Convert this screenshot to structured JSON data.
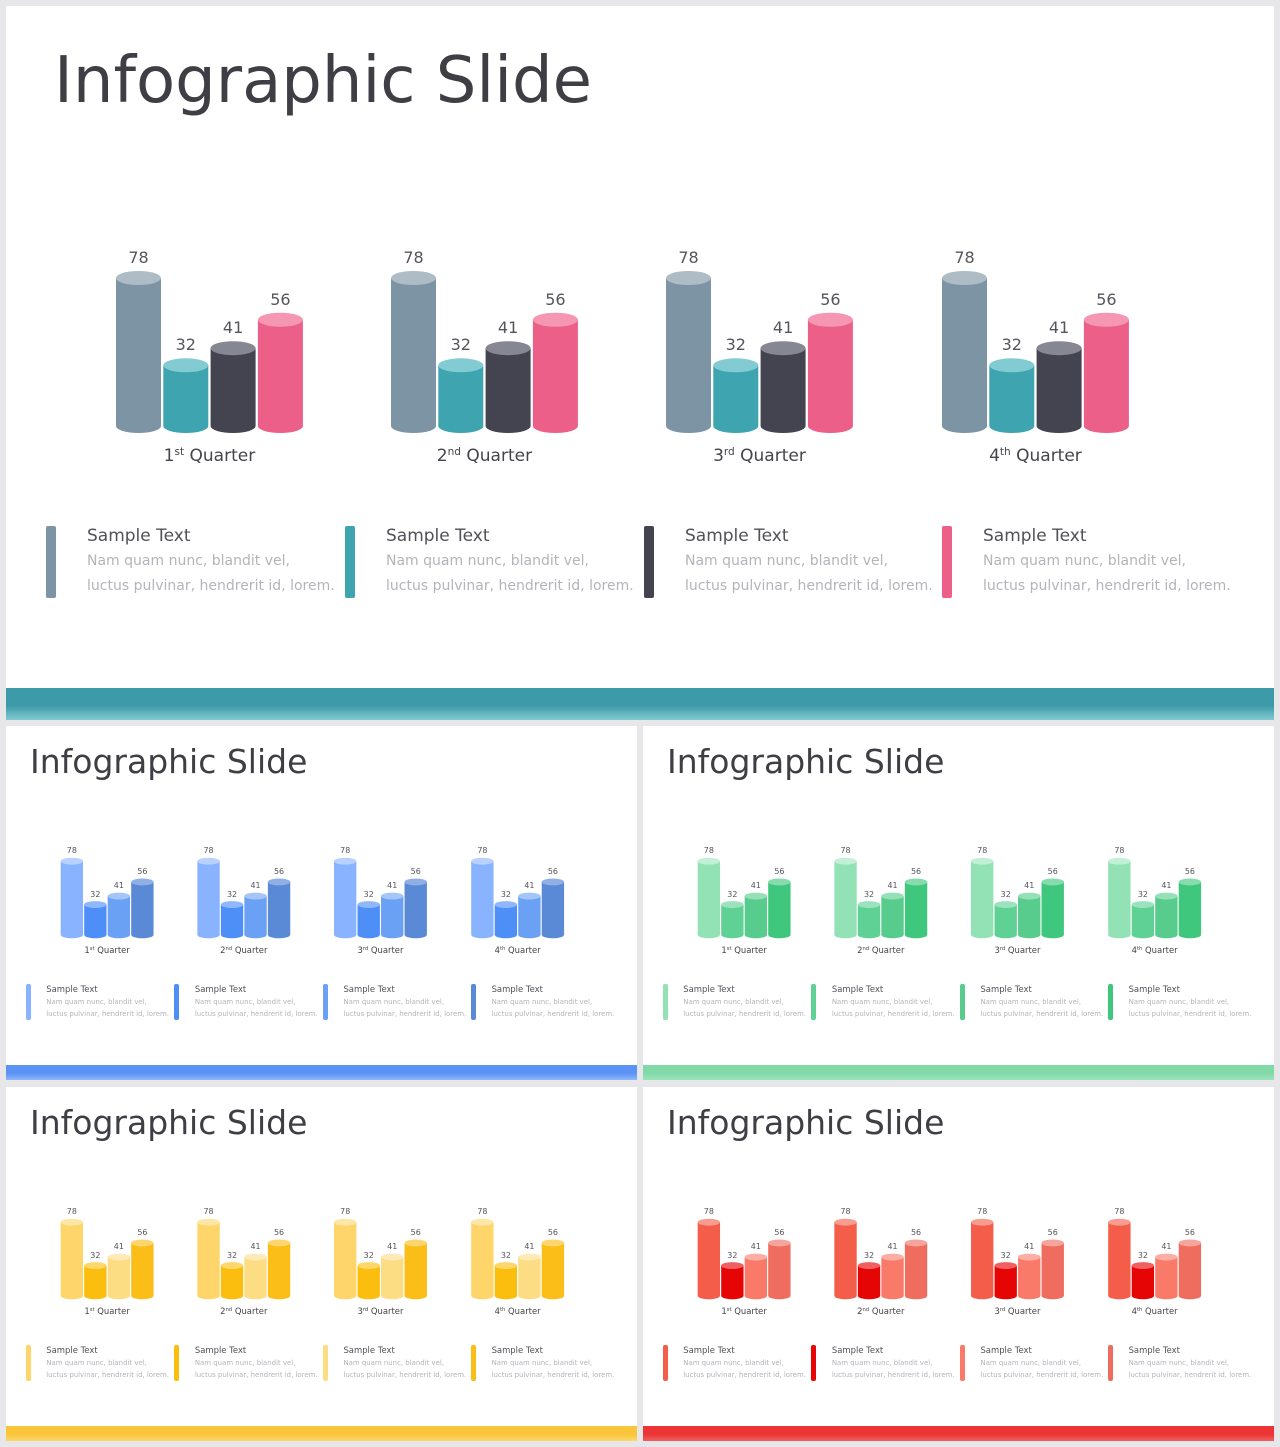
{
  "slides": [
    {
      "title": "Infographic Slide",
      "bar_colors": [
        "#7c94a3",
        "#3ea4b0",
        "#43444f",
        "#ec5f88"
      ],
      "top_colors": [
        "#aebcc5",
        "#82cbd2",
        "#868792",
        "#f596b2"
      ],
      "band_color": "#3d9aa8"
    },
    {
      "title": "Infographic Slide",
      "bar_colors": [
        "#8ab3ff",
        "#4e8ef7",
        "#6aa1f5",
        "#5a8ad6"
      ],
      "top_colors": [
        "#b9d1ff",
        "#8fb7fb",
        "#a4c5f8",
        "#90afe4"
      ],
      "band_color": "#5b92f5"
    },
    {
      "title": "Infographic Slide",
      "bar_colors": [
        "#93e2b6",
        "#60d195",
        "#57cc8c",
        "#3fc77d"
      ],
      "top_colors": [
        "#c2f0d6",
        "#9be3bc",
        "#95e0b6",
        "#86dcad"
      ],
      "band_color": "#82d9a8"
    },
    {
      "title": "Infographic Slide",
      "bar_colors": [
        "#fdd56a",
        "#fbbd0e",
        "#fddd84",
        "#fbbd17"
      ],
      "top_colors": [
        "#fee7a6",
        "#fdd76a",
        "#feeab7",
        "#fdd66f"
      ],
      "band_color": "#fbc53a"
    },
    {
      "title": "Infographic Slide",
      "bar_colors": [
        "#f45d4a",
        "#e50505",
        "#f97a68",
        "#ef6d5e"
      ],
      "top_colors": [
        "#f89c90",
        "#f06060",
        "#fbaea3",
        "#f5a59b"
      ],
      "band_color": "#ed3434"
    }
  ],
  "chart_data": {
    "type": "bar",
    "title": "Infographic Slide",
    "categories": [
      "1st Quarter",
      "2nd Quarter",
      "3rd Quarter",
      "4th Quarter"
    ],
    "category_parts": [
      [
        "1",
        "st"
      ],
      [
        "2",
        "nd"
      ],
      [
        "3",
        "rd"
      ],
      [
        "4",
        "th"
      ]
    ],
    "category_word": "Quarter",
    "series_values_per_category": [
      78,
      32,
      41,
      56
    ],
    "series": [
      {
        "values": [
          78,
          78,
          78,
          78
        ]
      },
      {
        "values": [
          32,
          32,
          32,
          32
        ]
      },
      {
        "values": [
          41,
          41,
          41,
          41
        ]
      },
      {
        "values": [
          56,
          56,
          56,
          56
        ]
      }
    ],
    "ylim": [
      0,
      78
    ],
    "grid": false,
    "legend": "bottom"
  },
  "legend_items": [
    {
      "title": "Sample Text",
      "line1": "Nam quam nunc, blandit vel,",
      "line2": "luctus pulvinar, hendrerit id, lorem."
    },
    {
      "title": "Sample Text",
      "line1": "Nam quam nunc, blandit vel,",
      "line2": "luctus pulvinar, hendrerit id, lorem."
    },
    {
      "title": "Sample Text",
      "line1": "Nam quam nunc, blandit vel,",
      "line2": "luctus pulvinar, hendrerit id, lorem."
    },
    {
      "title": "Sample Text",
      "line1": "Nam quam nunc, blandit vel,",
      "line2": "luctus pulvinar, hendrerit id, lorem."
    }
  ]
}
